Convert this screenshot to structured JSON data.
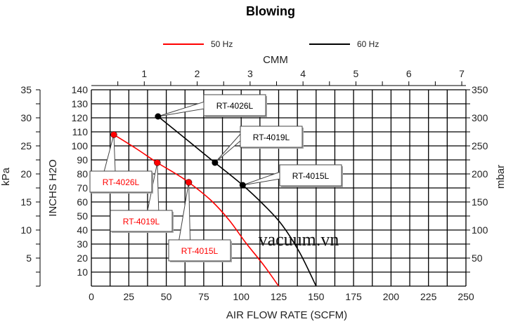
{
  "chart_data": {
    "type": "line",
    "title": "Blowing",
    "xlabel": "AIR FLOW RATE (SCFM)",
    "x2label": "CMM",
    "ylabel": "INCHS H2O",
    "ylabel_left2": "kPa",
    "ylabel_right": "mbar",
    "xlim": [
      0,
      250
    ],
    "ylim": [
      0,
      140
    ],
    "x_ticks": [
      0,
      25,
      50,
      75,
      100,
      125,
      150,
      175,
      200,
      225,
      250
    ],
    "y_ticks": [
      10,
      20,
      30,
      40,
      50,
      60,
      70,
      80,
      90,
      100,
      110,
      120,
      130,
      140
    ],
    "x2_ticks": [
      1,
      2,
      3,
      4,
      5,
      6,
      7
    ],
    "kpa_ticks": [
      5,
      10,
      15,
      20,
      25,
      30,
      35
    ],
    "mbar_ticks": [
      50,
      100,
      150,
      200,
      250,
      300,
      350
    ],
    "grid": true,
    "legend_position": "top",
    "watermark": "vacuum.vn",
    "series": [
      {
        "name": "50 Hz",
        "color": "#ff0000",
        "curve": [
          [
            15,
            108
          ],
          [
            30,
            98
          ],
          [
            44,
            88
          ],
          [
            55,
            81
          ],
          [
            65,
            74
          ],
          [
            80,
            61
          ],
          [
            92,
            47
          ],
          [
            103,
            31
          ],
          [
            115,
            15
          ],
          [
            125,
            0
          ]
        ],
        "points": [
          {
            "x": 15,
            "y": 108,
            "label": "RT-4026L"
          },
          {
            "x": 44,
            "y": 88,
            "label": "RT-4019L"
          },
          {
            "x": 65,
            "y": 74,
            "label": "RT-4015L"
          }
        ]
      },
      {
        "name": "60 Hz",
        "color": "#000000",
        "curve": [
          [
            44.5,
            121
          ],
          [
            63,
            105
          ],
          [
            82.5,
            88
          ],
          [
            101,
            72
          ],
          [
            115,
            58
          ],
          [
            127,
            44
          ],
          [
            139,
            24
          ],
          [
            150,
            0
          ]
        ],
        "points": [
          {
            "x": 44.5,
            "y": 121,
            "label": "RT-4026L"
          },
          {
            "x": 82.5,
            "y": 88,
            "label": "RT-4019L"
          },
          {
            "x": 101,
            "y": 72,
            "label": "RT-4015L"
          }
        ]
      }
    ]
  }
}
